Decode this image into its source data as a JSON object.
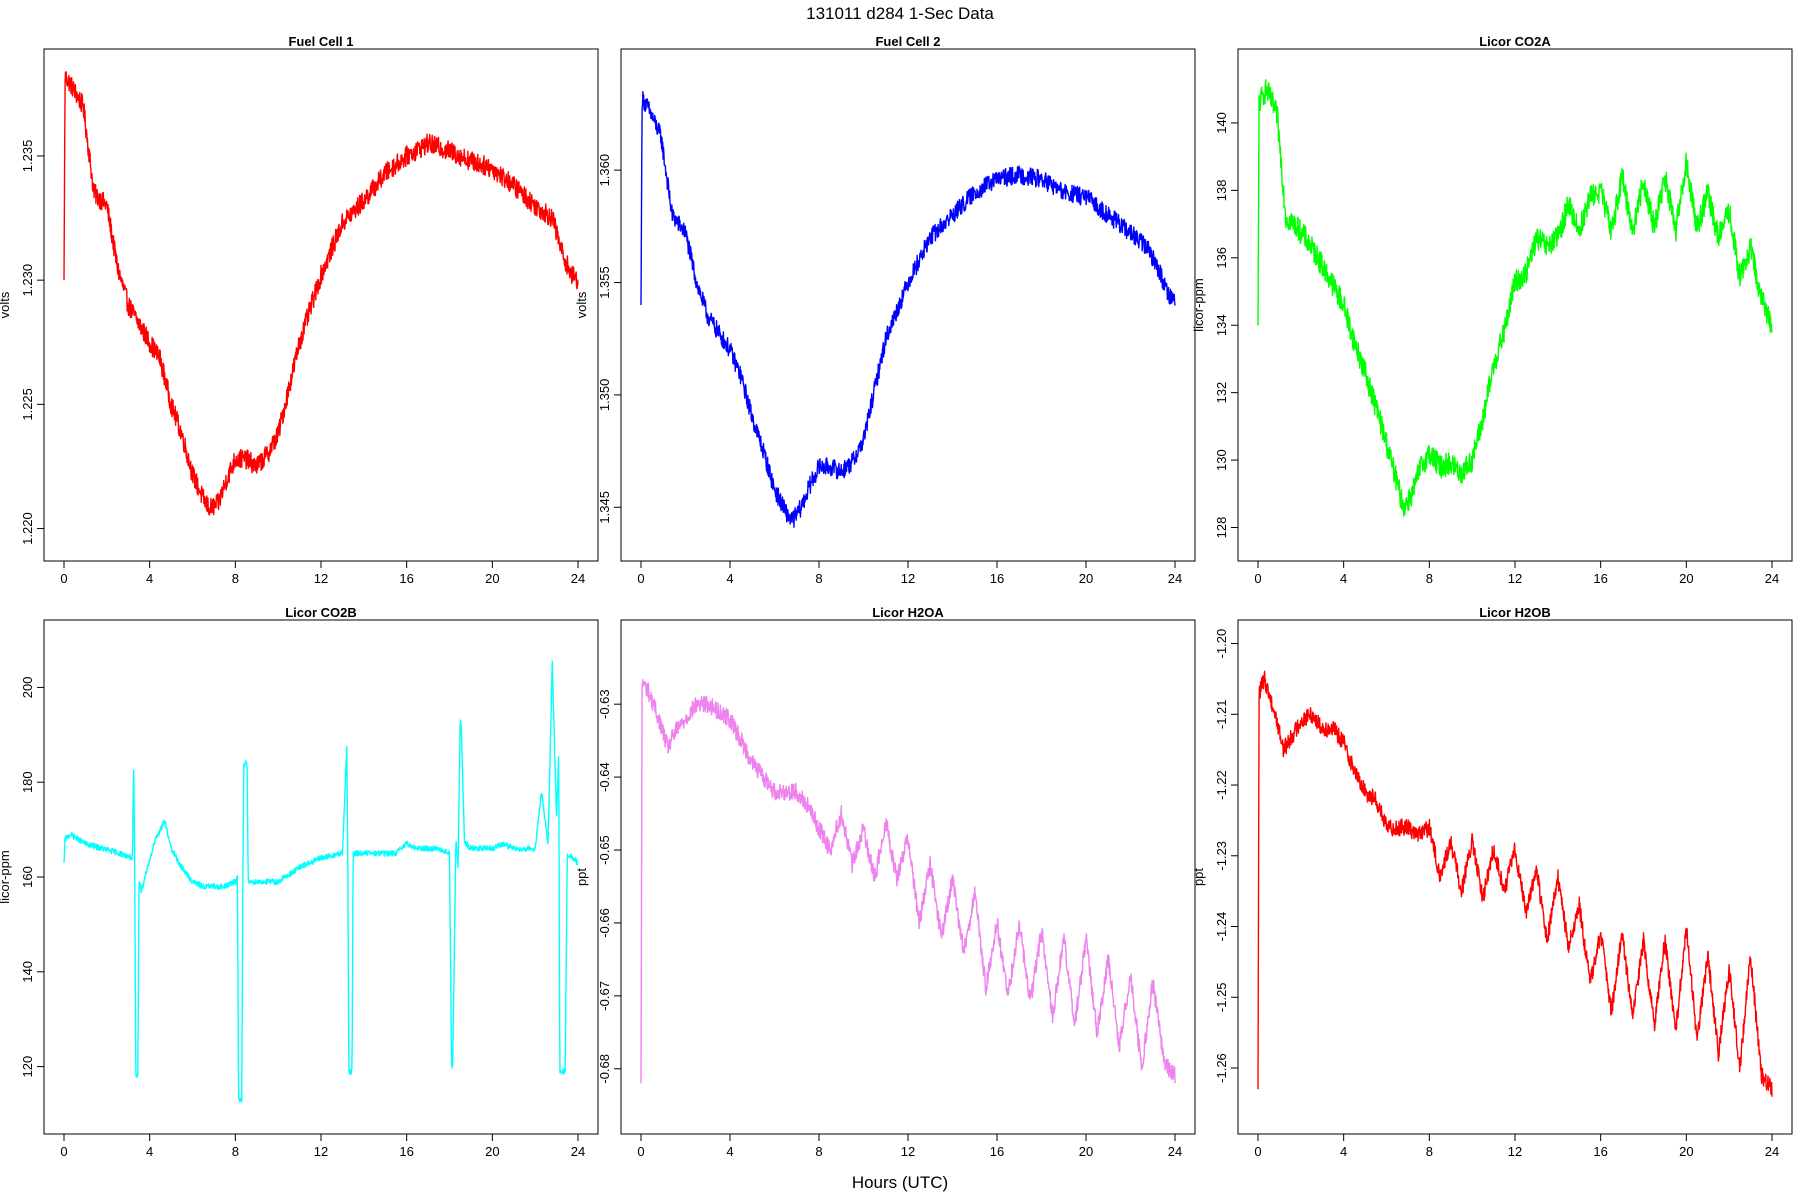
{
  "header": {
    "title": "131011   d284   1-Sec Data",
    "xlabel": "Hours (UTC)"
  },
  "chart_data": [
    {
      "type": "line",
      "title": "Fuel Cell 1",
      "ylabel": "volts",
      "color": "#ff0000",
      "xlim": [
        0,
        24
      ],
      "ylim": [
        1.2195,
        1.2385
      ],
      "xticks": [
        0,
        4,
        8,
        12,
        16,
        20,
        24
      ],
      "yticks": [
        1.22,
        1.225,
        1.23,
        1.235
      ],
      "ytick_labels": [
        "1.220",
        "1.225",
        "1.230",
        "1.235"
      ],
      "noise": 0.0004,
      "x": [
        0,
        0.05,
        0.3,
        0.9,
        1.4,
        2.0,
        2.5,
        3.0,
        4.0,
        4.5,
        5.0,
        5.5,
        6.0,
        6.5,
        6.8,
        7.2,
        7.6,
        8.0,
        8.5,
        9.0,
        9.5,
        10.0,
        11.0,
        12.0,
        13.0,
        14.0,
        15.0,
        16.0,
        17.0,
        18.0,
        19.0,
        20.0,
        21.0,
        22.0,
        22.8,
        23.3,
        23.7,
        24.0
      ],
      "y": [
        1.23,
        1.2382,
        1.2379,
        1.237,
        1.2335,
        1.233,
        1.2305,
        1.229,
        1.2275,
        1.2268,
        1.225,
        1.2238,
        1.2222,
        1.2212,
        1.2208,
        1.221,
        1.222,
        1.2228,
        1.2228,
        1.2225,
        1.223,
        1.2238,
        1.2275,
        1.2302,
        1.2323,
        1.2332,
        1.2343,
        1.235,
        1.2355,
        1.2352,
        1.2348,
        1.2345,
        1.2338,
        1.233,
        1.2325,
        1.231,
        1.2302,
        1.23
      ]
    },
    {
      "type": "line",
      "title": "Fuel Cell 2",
      "ylabel": "volts",
      "color": "#0000ff",
      "xlim": [
        0,
        24
      ],
      "ylim": [
        1.3435,
        1.3645
      ],
      "xticks": [
        0,
        4,
        8,
        12,
        16,
        20,
        24
      ],
      "yticks": [
        1.345,
        1.35,
        1.355,
        1.36
      ],
      "ytick_labels": [
        "1.345",
        "1.350",
        "1.355",
        "1.360"
      ],
      "noise": 0.0004,
      "x": [
        0,
        0.05,
        0.3,
        0.9,
        1.4,
        2.0,
        2.5,
        3.0,
        4.0,
        4.5,
        5.0,
        5.5,
        6.0,
        6.5,
        6.8,
        7.2,
        7.6,
        8.0,
        8.5,
        9.0,
        9.5,
        10.0,
        11.0,
        12.0,
        13.0,
        14.0,
        15.0,
        16.0,
        17.0,
        18.0,
        19.0,
        20.0,
        21.0,
        22.0,
        22.8,
        23.3,
        23.7,
        24.0
      ],
      "y": [
        1.354,
        1.3632,
        1.3628,
        1.3615,
        1.358,
        1.3572,
        1.355,
        1.3535,
        1.352,
        1.3508,
        1.349,
        1.3475,
        1.3458,
        1.3448,
        1.3444,
        1.345,
        1.346,
        1.3468,
        1.3468,
        1.3466,
        1.347,
        1.348,
        1.3525,
        1.355,
        1.357,
        1.358,
        1.359,
        1.3596,
        1.3598,
        1.3596,
        1.359,
        1.3588,
        1.358,
        1.3572,
        1.3565,
        1.3555,
        1.3545,
        1.3542
      ]
    },
    {
      "type": "line",
      "title": "Licor CO2A",
      "ylabel": "licor-ppm",
      "color": "#00ff00",
      "xlim": [
        0,
        24
      ],
      "ylim": [
        127.6,
        141.6
      ],
      "xticks": [
        0,
        4,
        8,
        12,
        16,
        20,
        24
      ],
      "yticks": [
        128,
        130,
        132,
        134,
        136,
        138,
        140
      ],
      "ytick_labels": [
        "128",
        "130",
        "132",
        "134",
        "136",
        "138",
        "140"
      ],
      "noise": 0.35,
      "x": [
        0,
        0.05,
        0.4,
        0.9,
        1.3,
        1.7,
        2.2,
        2.8,
        3.5,
        4.0,
        4.5,
        5.0,
        5.5,
        6.0,
        6.5,
        6.8,
        7.2,
        7.6,
        8.0,
        8.5,
        9.0,
        9.5,
        10.0,
        10.5,
        11.0,
        11.5,
        12.0,
        12.5,
        13.0,
        13.5,
        14.0,
        14.5,
        15.0,
        15.5,
        16.0,
        16.5,
        17.0,
        17.5,
        18.0,
        18.5,
        19.0,
        19.5,
        20.0,
        20.5,
        21.0,
        21.5,
        22.0,
        22.5,
        23.0,
        23.5,
        24.0
      ],
      "y": [
        134.0,
        140.6,
        141.0,
        140.2,
        137.2,
        137.0,
        136.6,
        136.0,
        135.2,
        134.6,
        133.5,
        132.6,
        131.6,
        130.5,
        129.3,
        128.6,
        129.0,
        129.8,
        130.2,
        129.8,
        129.9,
        129.6,
        130.0,
        131.2,
        132.8,
        133.8,
        135.3,
        135.5,
        136.6,
        136.3,
        136.6,
        137.6,
        136.8,
        137.8,
        138.0,
        136.8,
        138.4,
        136.8,
        138.3,
        136.9,
        138.4,
        136.8,
        138.8,
        136.9,
        137.9,
        136.6,
        137.4,
        135.4,
        136.3,
        134.8,
        134.0
      ]
    },
    {
      "type": "line",
      "title": "Licor CO2B",
      "ylabel": "licor-ppm",
      "color": "#00ffff",
      "xlim": [
        0,
        24
      ],
      "ylim": [
        110,
        210
      ],
      "xticks": [
        0,
        4,
        8,
        12,
        16,
        20,
        24
      ],
      "yticks": [
        120,
        140,
        160,
        180,
        200
      ],
      "ytick_labels": [
        "120",
        "140",
        "160",
        "180",
        "200"
      ],
      "noise": 0.6,
      "x": [
        0,
        0.05,
        0.3,
        1.0,
        1.8,
        2.6,
        3.2,
        3.25,
        3.3,
        3.35,
        3.45,
        3.5,
        3.55,
        3.6,
        4.2,
        4.7,
        5.0,
        5.5,
        6.0,
        6.5,
        7.0,
        7.5,
        8.0,
        8.1,
        8.15,
        8.3,
        8.35,
        8.4,
        8.55,
        8.6,
        9.0,
        10.0,
        11.0,
        12.0,
        13.0,
        13.2,
        13.25,
        13.3,
        13.45,
        13.5,
        14.0,
        14.5,
        15.0,
        15.5,
        16.0,
        16.5,
        17.0,
        17.5,
        18.0,
        18.1,
        18.15,
        18.3,
        18.4,
        18.5,
        18.55,
        18.7,
        18.8,
        19.0,
        19.5,
        20.0,
        20.5,
        21.0,
        21.5,
        22.0,
        22.3,
        22.6,
        22.8,
        23.0,
        23.1,
        23.15,
        23.4,
        23.5,
        24.0
      ],
      "y": [
        163,
        168,
        169,
        167,
        166,
        165,
        164,
        185,
        164,
        118,
        118,
        159,
        159,
        157,
        167,
        172,
        166,
        162,
        159,
        158,
        158,
        158,
        159,
        160,
        113,
        113,
        160,
        184,
        184,
        159,
        159,
        159,
        162,
        164,
        165,
        187,
        165,
        119,
        119,
        165,
        165,
        165,
        165,
        165,
        167,
        166,
        166,
        166,
        165,
        120,
        120,
        168,
        162,
        193,
        192,
        167,
        167,
        166,
        166,
        166,
        167,
        166,
        166,
        166,
        178,
        167,
        205,
        172,
        187,
        119,
        119,
        165,
        163
      ]
    },
    {
      "type": "line",
      "title": "Licor H2OA",
      "ylabel": "ppt",
      "color": "#ee82ee",
      "xlim": [
        0,
        24
      ],
      "ylim": [
        -0.6862,
        -0.6212
      ],
      "xticks": [
        0,
        4,
        8,
        12,
        16,
        20,
        24
      ],
      "yticks": [
        -0.63,
        -0.64,
        -0.65,
        -0.66,
        -0.67,
        -0.68
      ],
      "ytick_labels": [
        "-0.63",
        "-0.64",
        "-0.65",
        "-0.66",
        "-0.67",
        "-0.68"
      ],
      "noise": 0.0012,
      "x": [
        0,
        0.05,
        0.3,
        0.8,
        1.2,
        1.5,
        2.0,
        2.5,
        3.0,
        3.5,
        4.0,
        4.5,
        5.0,
        5.5,
        6.0,
        7.0,
        7.5,
        8.0,
        8.5,
        9.0,
        9.5,
        10.0,
        10.5,
        11.0,
        11.5,
        12.0,
        12.5,
        13.0,
        13.5,
        14.0,
        14.5,
        15.0,
        15.5,
        16.0,
        16.5,
        17.0,
        17.5,
        18.0,
        18.5,
        19.0,
        19.5,
        20.0,
        20.5,
        21.0,
        21.5,
        22.0,
        22.5,
        23.0,
        23.5,
        24.0
      ],
      "y": [
        -0.682,
        -0.627,
        -0.628,
        -0.632,
        -0.636,
        -0.634,
        -0.632,
        -0.63,
        -0.63,
        -0.631,
        -0.632,
        -0.635,
        -0.638,
        -0.64,
        -0.642,
        -0.642,
        -0.644,
        -0.647,
        -0.65,
        -0.645,
        -0.652,
        -0.647,
        -0.654,
        -0.646,
        -0.654,
        -0.648,
        -0.66,
        -0.652,
        -0.662,
        -0.654,
        -0.664,
        -0.656,
        -0.669,
        -0.66,
        -0.67,
        -0.66,
        -0.671,
        -0.661,
        -0.673,
        -0.662,
        -0.674,
        -0.662,
        -0.675,
        -0.665,
        -0.677,
        -0.667,
        -0.68,
        -0.668,
        -0.679,
        -0.681
      ]
    },
    {
      "type": "line",
      "title": "Licor H2OB",
      "ylabel": "ppt",
      "color": "#ff0000",
      "xlim": [
        0,
        24
      ],
      "ylim": [
        -1.2665,
        -1.1995
      ],
      "xticks": [
        0,
        4,
        8,
        12,
        16,
        20,
        24
      ],
      "yticks": [
        -1.2,
        -1.21,
        -1.22,
        -1.23,
        -1.24,
        -1.25,
        -1.26
      ],
      "ytick_labels": [
        "-1.20",
        "-1.21",
        "-1.22",
        "-1.23",
        "-1.24",
        "-1.25",
        "-1.26"
      ],
      "noise": 0.0012,
      "x": [
        0,
        0.05,
        0.3,
        0.8,
        1.2,
        1.6,
        2.0,
        2.5,
        3.0,
        3.5,
        4.0,
        4.5,
        5.0,
        5.5,
        6.0,
        6.5,
        7.0,
        7.5,
        8.0,
        8.5,
        9.0,
        9.5,
        10.0,
        10.5,
        11.0,
        11.5,
        12.0,
        12.5,
        13.0,
        13.5,
        14.0,
        14.5,
        15.0,
        15.5,
        16.0,
        16.5,
        17.0,
        17.5,
        18.0,
        18.5,
        19.0,
        19.5,
        20.0,
        20.5,
        21.0,
        21.5,
        22.0,
        22.5,
        23.0,
        23.5,
        24.0
      ],
      "y": [
        -1.263,
        -1.207,
        -1.205,
        -1.21,
        -1.215,
        -1.213,
        -1.211,
        -1.21,
        -1.212,
        -1.212,
        -1.214,
        -1.218,
        -1.221,
        -1.222,
        -1.226,
        -1.226,
        -1.226,
        -1.227,
        -1.226,
        -1.233,
        -1.228,
        -1.235,
        -1.228,
        -1.236,
        -1.229,
        -1.235,
        -1.229,
        -1.238,
        -1.232,
        -1.242,
        -1.233,
        -1.243,
        -1.237,
        -1.248,
        -1.241,
        -1.252,
        -1.241,
        -1.253,
        -1.242,
        -1.254,
        -1.242,
        -1.255,
        -1.24,
        -1.256,
        -1.244,
        -1.258,
        -1.246,
        -1.26,
        -1.244,
        -1.261,
        -1.263
      ]
    }
  ]
}
